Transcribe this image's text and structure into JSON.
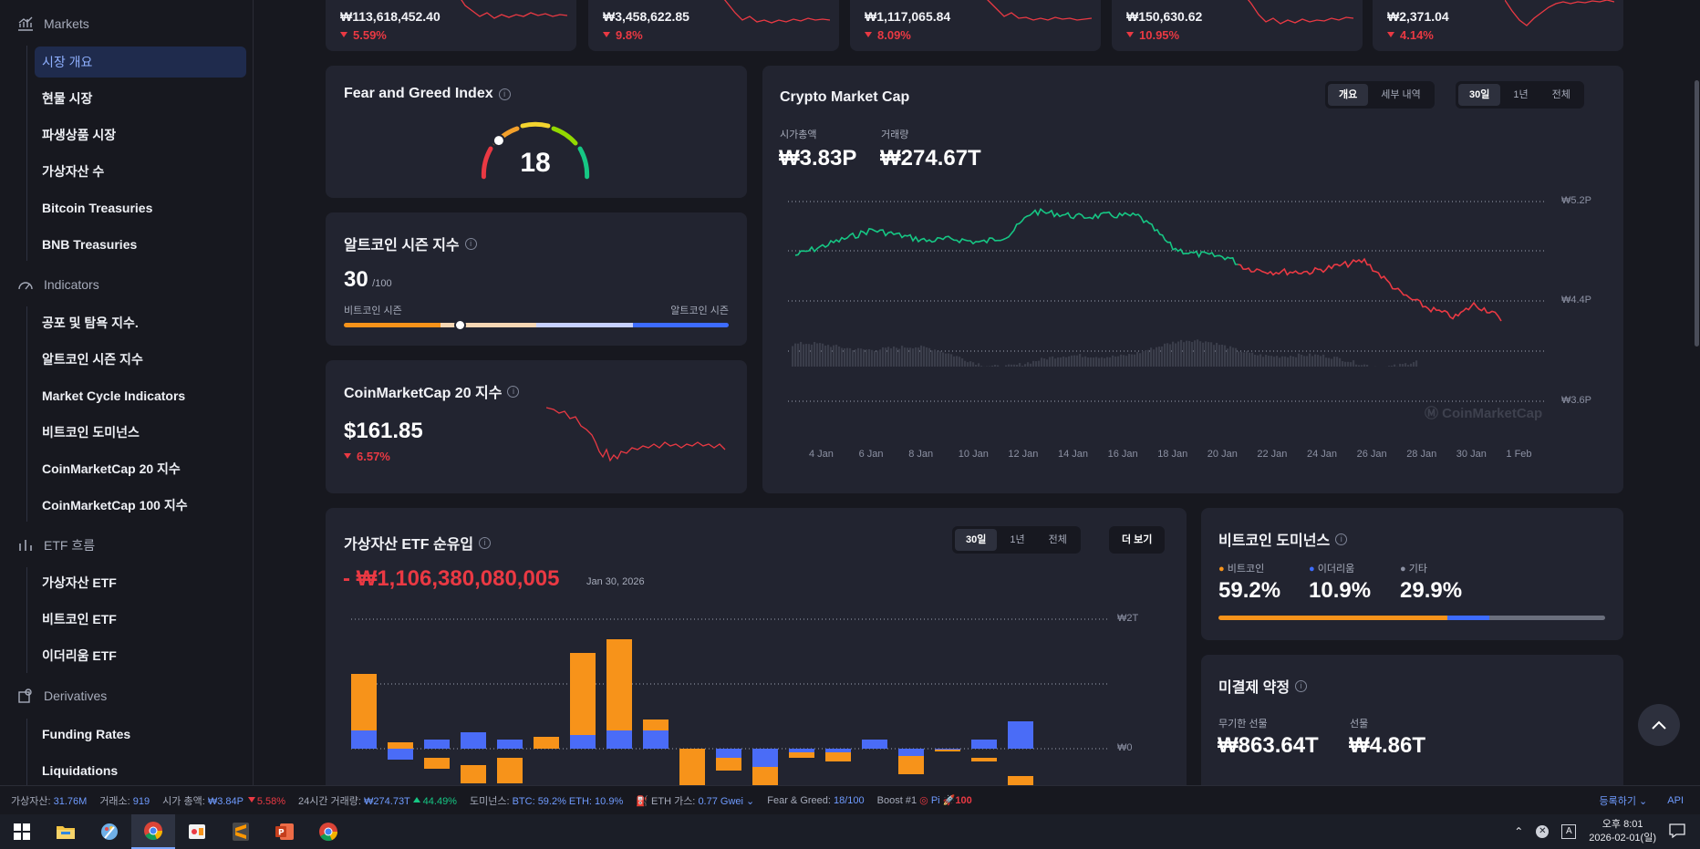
{
  "sidebar": {
    "sections": [
      {
        "title": "Markets",
        "icon": "bar-chart-icon"
      },
      {
        "title": "Indicators",
        "icon": "gauge-icon"
      },
      {
        "title": "ETF 흐름",
        "icon": "columns-icon"
      },
      {
        "title": "Derivatives",
        "icon": "derivatives-icon"
      }
    ],
    "items": [
      "시장 개요",
      "현물 시장",
      "파생상품 시장",
      "가상자산 수",
      "Bitcoin Treasuries",
      "BNB Treasuries",
      "공포 및 탐욕 지수.",
      "알트코인 시즌 지수",
      "Market Cycle Indicators",
      "비트코인 도미넌스",
      "CoinMarketCap 20 지수",
      "CoinMarketCap 100 지수",
      "가상자산 ETF",
      "비트코인 ETF",
      "이더리움 ETF",
      "Funding Rates",
      "Liquidations"
    ]
  },
  "top_cards": [
    {
      "value": "₩113,618,452.40",
      "change": "5.59%"
    },
    {
      "value": "₩3,458,622.85",
      "change": "9.8%"
    },
    {
      "value": "₩1,117,065.84",
      "change": "8.09%"
    },
    {
      "value": "₩150,630.62",
      "change": "10.95%"
    },
    {
      "value": "₩2,371.04",
      "change": "4.14%"
    }
  ],
  "fear_greed": {
    "title": "Fear and Greed Index",
    "value": "18",
    "gauge_fraction": 0.18
  },
  "altseason": {
    "title": "알트코인 시즌 지수",
    "value": "30",
    "max": "/100",
    "left_label": "비트코인 시즌",
    "right_label": "알트코인 시즌",
    "fraction": 0.3
  },
  "cmc20": {
    "title": "CoinMarketCap 20 지수",
    "value": "$161.85",
    "change": "6.57%"
  },
  "market_cap": {
    "title": "Crypto Market Cap",
    "tabs": [
      "개요",
      "세부 내역"
    ],
    "ranges": [
      "30일",
      "1년",
      "전체"
    ],
    "cap_label": "시가총액",
    "cap_value": "₩3.83P",
    "vol_label": "거래량",
    "vol_value": "₩274.67T",
    "y_ticks": [
      "₩5.2P",
      "₩4.4P",
      "₩3.6P"
    ],
    "x_ticks": [
      "4 Jan",
      "6 Jan",
      "8 Jan",
      "10 Jan",
      "12 Jan",
      "14 Jan",
      "16 Jan",
      "18 Jan",
      "20 Jan",
      "22 Jan",
      "24 Jan",
      "26 Jan",
      "28 Jan",
      "30 Jan",
      "1 Feb"
    ],
    "watermark": "CoinMarketCap"
  },
  "etf": {
    "title": "가상자산 ETF 순유입",
    "ranges": [
      "30일",
      "1년",
      "전체"
    ],
    "more": "더 보기",
    "value": "- ₩1,106,380,080,005",
    "date": "Jan 30, 2026",
    "y_ticks": [
      "₩2T",
      "₩0"
    ]
  },
  "dominance": {
    "title": "비트코인 도미넌스",
    "items": [
      {
        "label": "비트코인",
        "value": "59.2%",
        "color": "#f7931a",
        "fraction": 0.592
      },
      {
        "label": "이더리움",
        "value": "10.9%",
        "color": "#3d6cff",
        "fraction": 0.109
      },
      {
        "label": "기타",
        "value": "29.9%",
        "color": "#6b6f7d",
        "fraction": 0.299
      }
    ]
  },
  "open_interest": {
    "title": "미결제 약정",
    "perp_label": "무기한 선물",
    "perp_value": "₩863.64T",
    "fut_label": "선물",
    "fut_value": "₩4.86T"
  },
  "statusbar": {
    "assets_label": "가상자산:",
    "assets_value": "31.76M",
    "exchanges_label": "거래소:",
    "exchanges_value": "919",
    "mcap_label": "시가 총액:",
    "mcap_value": "₩3.84P",
    "mcap_change": "5.58%",
    "vol_label": "24시간 거래량:",
    "vol_value": "₩274.73T",
    "vol_change": "44.49%",
    "dom_label": "도미넌스:",
    "dom_value": "BTC: 59.2% ETH: 10.9%",
    "gas_label": "ETH 가스:",
    "gas_value": "0.77 Gwei",
    "fg_label": "Fear & Greed:",
    "fg_value": "18/100",
    "boost_label": "Boost #1",
    "boost_coin": "Pi",
    "boost_value": "100",
    "register": "등록하기",
    "api": "API"
  },
  "taskbar": {
    "time": "오후 8:01",
    "date": "2026-02-01(일)",
    "ime": "A"
  }
}
